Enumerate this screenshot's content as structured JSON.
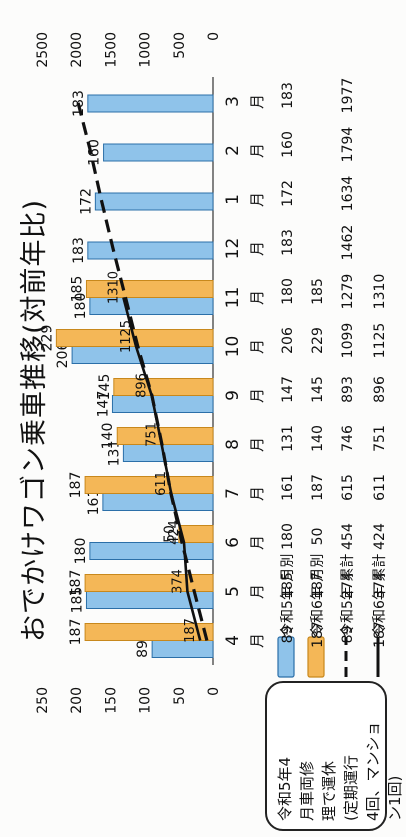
{
  "chart_data": {
    "type": "bar",
    "title": "おでかけワゴン乗車推移(対前年比)",
    "categories": [
      "4\n月",
      "5\n月",
      "6\n月",
      "7\n月",
      "8\n月",
      "9\n月",
      "10\n月",
      "11\n月",
      "12\n月",
      "1\n月",
      "2\n月",
      "3\n月"
    ],
    "series": [
      {
        "name": "令和5年 月別",
        "type": "bar",
        "axis": "left",
        "color": "#8fc3ea",
        "values": [
          89,
          185,
          180,
          161,
          131,
          147,
          206,
          180,
          183,
          172,
          160,
          183
        ],
        "table_values": [
          "89",
          "185",
          "180",
          "161",
          "131",
          "147",
          "206",
          "180",
          "183",
          "172",
          "160",
          "183"
        ]
      },
      {
        "name": "令和6年 月別",
        "type": "bar",
        "axis": "left",
        "color": "#f4b757",
        "values": [
          187,
          187,
          50,
          187,
          140,
          145,
          229,
          185,
          null,
          null,
          null,
          null
        ],
        "table_values": [
          "187",
          "187",
          "50",
          "187",
          "140",
          "145",
          "229",
          "185",
          "",
          "",
          "",
          ""
        ]
      },
      {
        "name": "令和5年 累計",
        "type": "line",
        "axis": "right",
        "style": "dashed",
        "color": "#111111",
        "values": [
          89,
          274,
          454,
          615,
          746,
          893,
          1099,
          1279,
          1462,
          1634,
          1794,
          1977
        ],
        "table_values": [
          "89",
          "274",
          "454",
          "615",
          "746",
          "893",
          "1099",
          "1279",
          "1462",
          "1634",
          "1794",
          "1977"
        ]
      },
      {
        "name": "令和6年 累計",
        "type": "line",
        "axis": "right",
        "style": "solid",
        "color": "#111111",
        "values": [
          187,
          374,
          424,
          611,
          751,
          896,
          1125,
          1310,
          null,
          null,
          null,
          null
        ],
        "table_values": [
          "187",
          "374",
          "424",
          "611",
          "751",
          "896",
          "1125",
          "1310",
          "",
          "",
          "",
          ""
        ]
      }
    ],
    "y_left": {
      "ticks": [
        "250",
        "200",
        "150",
        "100",
        "50",
        "0"
      ],
      "range": [
        0,
        250
      ]
    },
    "y_right": {
      "ticks": [
        "2500",
        "2000",
        "1500",
        "1000",
        "500",
        "0"
      ],
      "range": [
        0,
        2500
      ]
    },
    "cum_labels": [
      {
        "text": "187",
        "series": 3,
        "index": 0
      },
      {
        "text": "374",
        "series": 3,
        "index": 1
      },
      {
        "text": "424",
        "series": 3,
        "index": 2
      },
      {
        "text": "611",
        "series": 3,
        "index": 3
      },
      {
        "text": "751",
        "series": 3,
        "index": 4
      },
      {
        "text": "896",
        "series": 3,
        "index": 5
      },
      {
        "text": "1125",
        "series": 3,
        "index": 6
      },
      {
        "text": "1310",
        "series": 3,
        "index": 7
      }
    ],
    "grid": false,
    "legend_position": "data table below the plot"
  },
  "callout": {
    "lines": [
      "令和5年4",
      "月車両修",
      "理で運休",
      "(定期運行",
      "4回、マンショ",
      "ン1回)"
    ]
  }
}
